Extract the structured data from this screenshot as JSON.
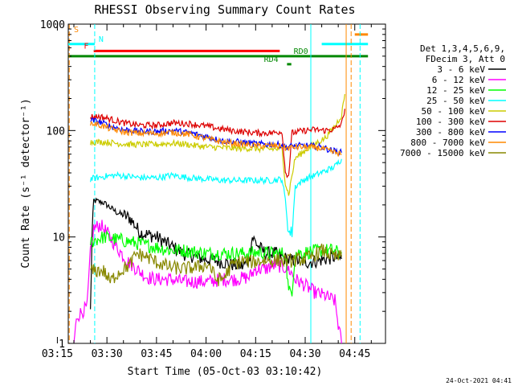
{
  "chart_data": {
    "type": "line",
    "title": "RHESSI Observing Summary Count Rates",
    "xlabel": "Start Time (05-Oct-03 03:10:42)",
    "ylabel": "Count Rate (s⁻¹ detector⁻¹)",
    "footer": "24-Oct-2021 04:41",
    "yscale": "log",
    "ylim": [
      1,
      1000
    ],
    "xlim_minutes": [
      3.3,
      99.3
    ],
    "x_ticks": [
      {
        "min": 0,
        "label": "03:15"
      },
      {
        "min": 15,
        "label": "03:30"
      },
      {
        "min": 30,
        "label": "03:45"
      },
      {
        "min": 45,
        "label": "04:00"
      },
      {
        "min": 60,
        "label": "04:15"
      },
      {
        "min": 75,
        "label": "04:30"
      },
      {
        "min": 90,
        "label": "04:45"
      }
    ],
    "y_ticks": [
      {
        "value": 1,
        "label": "1"
      },
      {
        "value": 10,
        "label": "10"
      },
      {
        "value": 100,
        "label": "100"
      },
      {
        "value": 1000,
        "label": "1000"
      }
    ],
    "legend_header": [
      "Det 1,3,4,5,6,9,",
      "FDecim 3, Att 0"
    ],
    "legend_placement": "right",
    "series": [
      {
        "name": "3 - 6 keV",
        "color": "#000000",
        "points": [
          [
            10,
            2
          ],
          [
            10.5,
            10
          ],
          [
            11,
            22
          ],
          [
            14,
            21
          ],
          [
            18,
            17
          ],
          [
            22,
            15
          ],
          [
            25,
            11
          ],
          [
            30,
            10
          ],
          [
            35,
            8
          ],
          [
            38,
            7
          ],
          [
            42,
            6.5
          ],
          [
            45,
            6.2
          ],
          [
            48,
            6
          ],
          [
            52,
            5.6
          ],
          [
            56,
            5.3
          ],
          [
            58,
            6
          ],
          [
            59,
            10
          ],
          [
            61,
            8
          ],
          [
            63,
            7
          ],
          [
            66,
            7
          ],
          [
            68,
            6.5
          ],
          [
            70,
            6
          ],
          [
            73,
            6
          ],
          [
            76,
            5.8
          ],
          [
            79,
            6
          ],
          [
            84,
            6.5
          ],
          [
            86,
            6.2
          ]
        ]
      },
      {
        "name": "6 - 12 keV",
        "color": "#ff00ff",
        "points": [
          [
            5,
            1
          ],
          [
            5.5,
            1.4
          ],
          [
            6,
            1.8
          ],
          [
            9,
            2.2
          ],
          [
            10,
            7
          ],
          [
            11,
            12
          ],
          [
            13,
            13
          ],
          [
            15,
            11
          ],
          [
            18,
            8
          ],
          [
            21,
            6
          ],
          [
            24,
            5
          ],
          [
            27,
            4.2
          ],
          [
            30,
            4
          ],
          [
            34,
            4
          ],
          [
            38,
            3.8
          ],
          [
            42,
            3.8
          ],
          [
            46,
            3.8
          ],
          [
            50,
            4
          ],
          [
            54,
            4
          ],
          [
            58,
            4.2
          ],
          [
            60,
            5
          ],
          [
            63,
            5
          ],
          [
            66,
            5.5
          ],
          [
            70,
            5
          ],
          [
            72,
            4
          ],
          [
            75,
            3.5
          ],
          [
            78,
            3
          ],
          [
            81,
            2.8
          ],
          [
            84,
            2.5
          ],
          [
            85,
            1.5
          ],
          [
            86,
            1
          ]
        ]
      },
      {
        "name": "12 - 25 keV",
        "color": "#00ff00",
        "points": [
          [
            10,
            9
          ],
          [
            14,
            10
          ],
          [
            18,
            9.5
          ],
          [
            22,
            9
          ],
          [
            26,
            8.5
          ],
          [
            30,
            8
          ],
          [
            34,
            7.5
          ],
          [
            38,
            7.5
          ],
          [
            42,
            7.2
          ],
          [
            46,
            7
          ],
          [
            50,
            7
          ],
          [
            54,
            7
          ],
          [
            58,
            7
          ],
          [
            61,
            7.2
          ],
          [
            64,
            7
          ],
          [
            69,
            7
          ],
          [
            70,
            3
          ],
          [
            71,
            3.2
          ],
          [
            72,
            7
          ],
          [
            76,
            7.2
          ],
          [
            80,
            7.5
          ],
          [
            83,
            7.5
          ],
          [
            86,
            7
          ]
        ]
      },
      {
        "name": "25 - 50 keV",
        "color": "#00ffff",
        "points": [
          [
            10,
            35
          ],
          [
            14,
            37
          ],
          [
            18,
            38
          ],
          [
            22,
            37
          ],
          [
            25,
            36
          ],
          [
            30,
            36
          ],
          [
            35,
            38
          ],
          [
            40,
            36
          ],
          [
            45,
            35
          ],
          [
            50,
            34
          ],
          [
            55,
            34
          ],
          [
            60,
            34
          ],
          [
            65,
            34
          ],
          [
            68,
            35
          ],
          [
            69,
            22
          ],
          [
            70,
            11
          ],
          [
            71,
            11
          ],
          [
            72,
            30
          ],
          [
            75,
            35
          ],
          [
            78,
            38
          ],
          [
            82,
            43
          ],
          [
            84,
            46
          ],
          [
            86,
            54
          ]
        ]
      },
      {
        "name": "50 - 100 keV",
        "color": "#cccc00",
        "points": [
          [
            10,
            78
          ],
          [
            14,
            78
          ],
          [
            18,
            76
          ],
          [
            22,
            74
          ],
          [
            26,
            74
          ],
          [
            30,
            74
          ],
          [
            34,
            76
          ],
          [
            38,
            75
          ],
          [
            42,
            72
          ],
          [
            46,
            70
          ],
          [
            50,
            69
          ],
          [
            54,
            68
          ],
          [
            58,
            68
          ],
          [
            62,
            67
          ],
          [
            66,
            67
          ],
          [
            68,
            67
          ],
          [
            69,
            32
          ],
          [
            70,
            25
          ],
          [
            71,
            38
          ],
          [
            72,
            55
          ],
          [
            75,
            65
          ],
          [
            78,
            75
          ],
          [
            81,
            85
          ],
          [
            84,
            110
          ],
          [
            86,
            140
          ],
          [
            87,
            220
          ]
        ]
      },
      {
        "name": "100 - 300 keV",
        "color": "#dd0000",
        "points": [
          [
            10,
            135
          ],
          [
            13,
            135
          ],
          [
            16,
            128
          ],
          [
            20,
            118
          ],
          [
            25,
            112
          ],
          [
            30,
            112
          ],
          [
            35,
            118
          ],
          [
            40,
            116
          ],
          [
            45,
            110
          ],
          [
            50,
            103
          ],
          [
            55,
            98
          ],
          [
            60,
            95
          ],
          [
            65,
            95
          ],
          [
            68,
            98
          ],
          [
            69,
            40
          ],
          [
            70,
            38
          ],
          [
            71,
            95
          ],
          [
            75,
            100
          ],
          [
            78,
            102
          ],
          [
            81,
            100
          ],
          [
            84,
            103
          ],
          [
            86,
            115
          ],
          [
            87,
            160
          ]
        ]
      },
      {
        "name": "300 - 800 keV",
        "color": "#0000ff",
        "points": [
          [
            10,
            125
          ],
          [
            13,
            120
          ],
          [
            16,
            110
          ],
          [
            20,
            102
          ],
          [
            25,
            98
          ],
          [
            30,
            98
          ],
          [
            35,
            100
          ],
          [
            40,
            95
          ],
          [
            45,
            88
          ],
          [
            50,
            80
          ],
          [
            55,
            78
          ],
          [
            60,
            75
          ],
          [
            65,
            74
          ],
          [
            68,
            73
          ],
          [
            69,
            70
          ],
          [
            72,
            72
          ],
          [
            76,
            72
          ],
          [
            80,
            70
          ],
          [
            83,
            65
          ],
          [
            86,
            62
          ]
        ]
      },
      {
        "name": "800 - 7000 keV",
        "color": "#ff8800",
        "points": [
          [
            10,
            118
          ],
          [
            13,
            112
          ],
          [
            16,
            104
          ],
          [
            20,
            97
          ],
          [
            25,
            94
          ],
          [
            30,
            94
          ],
          [
            35,
            96
          ],
          [
            40,
            92
          ],
          [
            45,
            84
          ],
          [
            50,
            78
          ],
          [
            55,
            75
          ],
          [
            60,
            72
          ],
          [
            65,
            72
          ],
          [
            68,
            71
          ],
          [
            69,
            68
          ],
          [
            72,
            70
          ],
          [
            76,
            70
          ],
          [
            80,
            68
          ],
          [
            83,
            63
          ],
          [
            86,
            60
          ]
        ]
      },
      {
        "name": "7000 - 15000 keV",
        "color": "#888800",
        "points": [
          [
            10,
            4.8
          ],
          [
            14,
            4.8
          ],
          [
            16,
            3.8
          ],
          [
            18,
            4.5
          ],
          [
            20,
            5
          ],
          [
            22,
            5.5
          ],
          [
            24,
            7
          ],
          [
            27,
            6.5
          ],
          [
            30,
            5.8
          ],
          [
            34,
            5.2
          ],
          [
            38,
            5
          ],
          [
            42,
            5.2
          ],
          [
            46,
            5.5
          ],
          [
            48,
            4
          ],
          [
            50,
            4
          ],
          [
            53,
            5.5
          ],
          [
            56,
            6
          ],
          [
            59,
            5.8
          ],
          [
            62,
            6
          ],
          [
            65,
            6
          ],
          [
            68,
            6
          ],
          [
            71,
            6
          ],
          [
            74,
            6.2
          ],
          [
            77,
            6.5
          ],
          [
            80,
            7.5
          ],
          [
            82,
            7
          ],
          [
            84,
            6.5
          ],
          [
            86,
            6.5
          ]
        ]
      }
    ],
    "vertical_lines": [
      {
        "min": 3.6,
        "color": "#ff8800",
        "dash": true
      },
      {
        "min": 11.3,
        "color": "#00ffff",
        "dash": true
      },
      {
        "min": 76.7,
        "color": "#00ffff",
        "dash": false
      },
      {
        "min": 87.4,
        "color": "#ff8800",
        "dash": false
      },
      {
        "min": 88.9,
        "color": "#ff8800",
        "dash": true
      },
      {
        "min": 91.6,
        "color": "#00ffff",
        "dash": true
      }
    ],
    "flag_bars": [
      {
        "label": "S",
        "color": "#ff8800",
        "y": 800,
        "spans": [
          [
            -1.5,
            3.6
          ],
          [
            90.0,
            94.0
          ]
        ],
        "label_at": 5.0,
        "label_color": "#ff8800"
      },
      {
        "label": "N",
        "color": "#00ffff",
        "y": 650,
        "spans": [
          [
            -1.5,
            11.3
          ],
          [
            80.0,
            94.0
          ]
        ],
        "label_at": 12.5,
        "label_color": "#00ffff"
      },
      {
        "label": "F",
        "color": "#ff0000",
        "y": 560,
        "spans": [
          [
            11.0,
            67.3
          ]
        ],
        "label_at": 8.0,
        "label_color": "#ff0000"
      },
      {
        "label": "RD0",
        "color": "#008800",
        "y": 500,
        "spans": [
          [
            -1.5,
            94.0
          ]
        ],
        "label_at": 71.5,
        "label_color": "#008800"
      },
      {
        "label": "RD4",
        "color": "#008800",
        "y": 420,
        "spans": [
          [
            69.5,
            70.8
          ]
        ],
        "label_at": 62.5,
        "label_color": "#008800"
      }
    ]
  }
}
